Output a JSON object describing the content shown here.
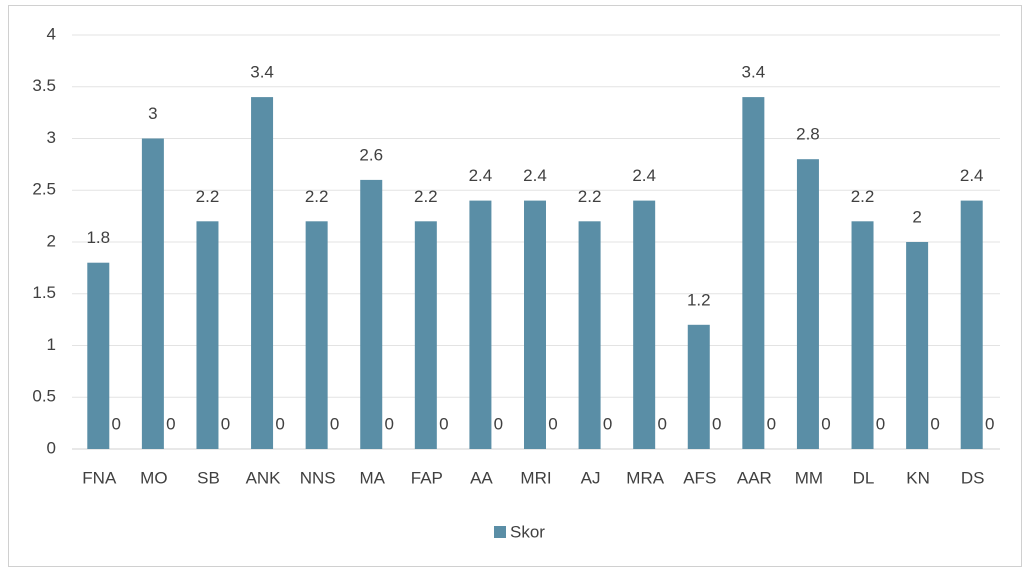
{
  "chart_data": {
    "type": "bar",
    "categories": [
      "FNA",
      "MO",
      "SB",
      "ANK",
      "NNS",
      "MA",
      "FAP",
      "AA",
      "MRI",
      "AJ",
      "MRA",
      "AFS",
      "AAR",
      "MM",
      "DL",
      "KN",
      "DS"
    ],
    "series": [
      {
        "name": "Skor",
        "color": "#5a8ea6",
        "values": [
          1.8,
          3,
          2.2,
          3.4,
          2.2,
          2.6,
          2.2,
          2.4,
          2.4,
          2.2,
          2.4,
          1.2,
          3.4,
          2.8,
          2.2,
          2,
          2.4
        ]
      },
      {
        "color": "#c0504d",
        "values": [
          0,
          0,
          0,
          0,
          0,
          0,
          0,
          0,
          0,
          0,
          0,
          0,
          0,
          0,
          0,
          0,
          0
        ]
      }
    ],
    "ylim": [
      0,
      4
    ],
    "yticks": [
      0,
      0.5,
      1,
      1.5,
      2,
      2.5,
      3,
      3.5,
      4
    ],
    "grid": true,
    "legend": "bottom"
  }
}
